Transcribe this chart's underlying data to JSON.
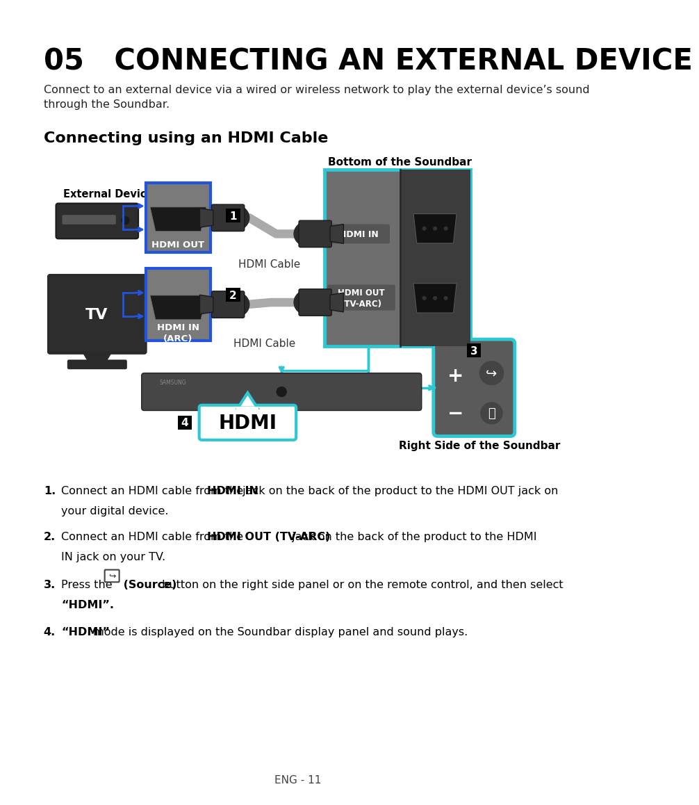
{
  "title": "05   CONNECTING AN EXTERNAL DEVICE",
  "subtitle": "Connect to an external device via a wired or wireless network to play the external device’s sound\nthrough the Soundbar.",
  "section_title": "Connecting using an HDMI Cable",
  "bottom_label": "Bottom of the Soundbar",
  "right_label": "Right Side of the Soundbar",
  "external_device_label": "External Device",
  "tv_label": "TV",
  "hdmi_out_label": "HDMI OUT",
  "hdmi_in_arc_label": "HDMI IN\n(ARC)",
  "hdmi_cable_label1": "HDMI Cable",
  "hdmi_cable_label2": "HDMI Cable",
  "hdmi_in_label": "HDMI IN",
  "hdmi_out_arc_label": "HDMI OUT\n(TV-ARC)",
  "hdmi_display_label": "HDMI",
  "page_num": "ENG - 11",
  "bg_color": "#ffffff",
  "cyan_color": "#2ec8d4",
  "blue_border_color": "#2255dd",
  "port_bg": "#7a7a7a",
  "soundbar_panel_bg": "#6e6e6e",
  "soundbar_dark_strip": "#3a3a3a",
  "device_dark": "#2a2a2a",
  "remote_bg": "#5c5c5c"
}
